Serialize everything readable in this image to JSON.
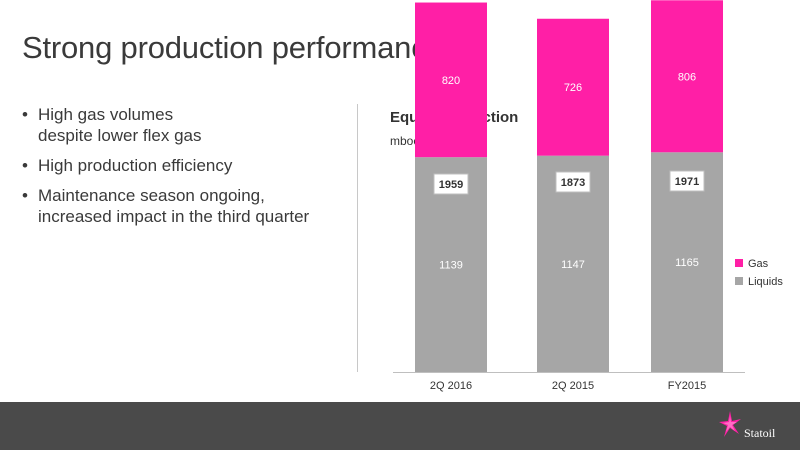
{
  "slide": {
    "title": "Strong production performance",
    "bullets": [
      {
        "line1": "High gas volumes",
        "line2": "despite lower flex gas"
      },
      {
        "line1": "High production efficiency",
        "line2": ""
      },
      {
        "line1": "Maintenance season ongoing,",
        "line2": "increased impact in the third quarter"
      }
    ]
  },
  "chart_data": {
    "type": "bar",
    "stacked": true,
    "title": "Equity production",
    "unit": "mboe/d",
    "categories": [
      "2Q 2016",
      "2Q 2015",
      "FY2015"
    ],
    "series": [
      {
        "name": "Liquids",
        "values": [
          1139,
          1147,
          1165
        ],
        "color": "#a6a6a6"
      },
      {
        "name": "Gas",
        "values": [
          820,
          726,
          806
        ],
        "color": "#ff1fa6"
      }
    ],
    "totals": [
      1959,
      1873,
      1971
    ],
    "ylim": [
      0,
      2500
    ],
    "legend": "right",
    "grid": false
  },
  "footer": {
    "brand": "Statoil",
    "background": "#4a4a4a",
    "logo_icon": "star-logo-icon"
  }
}
